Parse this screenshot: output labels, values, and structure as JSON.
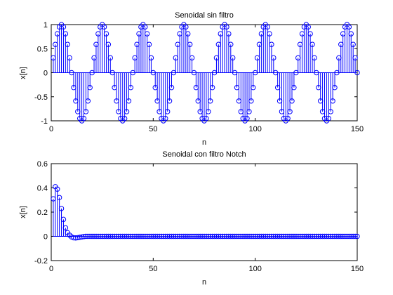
{
  "chart_data": [
    {
      "type": "stem",
      "title": "Senoidal sin filtro",
      "xlabel": "n",
      "ylabel": "x[n]",
      "xlim": [
        0,
        150
      ],
      "ylim": [
        -1,
        1
      ],
      "xticks": [
        0,
        50,
        100,
        150
      ],
      "yticks": [
        -1,
        -0.5,
        0,
        0.5,
        1
      ],
      "xtick_labels": [
        "0",
        "50",
        "100",
        "150"
      ],
      "ytick_labels": [
        "-1",
        "-0.5",
        "0",
        "0.5",
        "1"
      ],
      "signal": {
        "kind": "sinusoid",
        "amplitude": 1,
        "period": 20,
        "n_start": 1,
        "n_end": 150
      },
      "color": "#0000ff"
    },
    {
      "type": "stem",
      "title": "Senoidal con filtro Notch",
      "xlabel": "n",
      "ylabel": "x[n]",
      "xlim": [
        0,
        150
      ],
      "ylim": [
        -0.2,
        0.6
      ],
      "xticks": [
        0,
        50,
        100,
        150
      ],
      "yticks": [
        -0.2,
        0,
        0.2,
        0.4,
        0.6
      ],
      "xtick_labels": [
        "0",
        "50",
        "100",
        "150"
      ],
      "ytick_labels": [
        "-0.2",
        "0",
        "0.2",
        "0.4",
        "0.6"
      ],
      "x": [
        1,
        2,
        3,
        4,
        5,
        6,
        7,
        8,
        9,
        10,
        11,
        12,
        13,
        14,
        15,
        16,
        17,
        18
      ],
      "y": [
        0.31,
        0.41,
        0.39,
        0.32,
        0.23,
        0.14,
        0.07,
        0.03,
        0.01,
        -0.005,
        -0.012,
        -0.013,
        -0.011,
        -0.008,
        -0.005,
        -0.002,
        0.0,
        0.0
      ],
      "tail": {
        "value": 0,
        "n_start": 19,
        "n_end": 150
      },
      "color": "#0000ff"
    }
  ]
}
